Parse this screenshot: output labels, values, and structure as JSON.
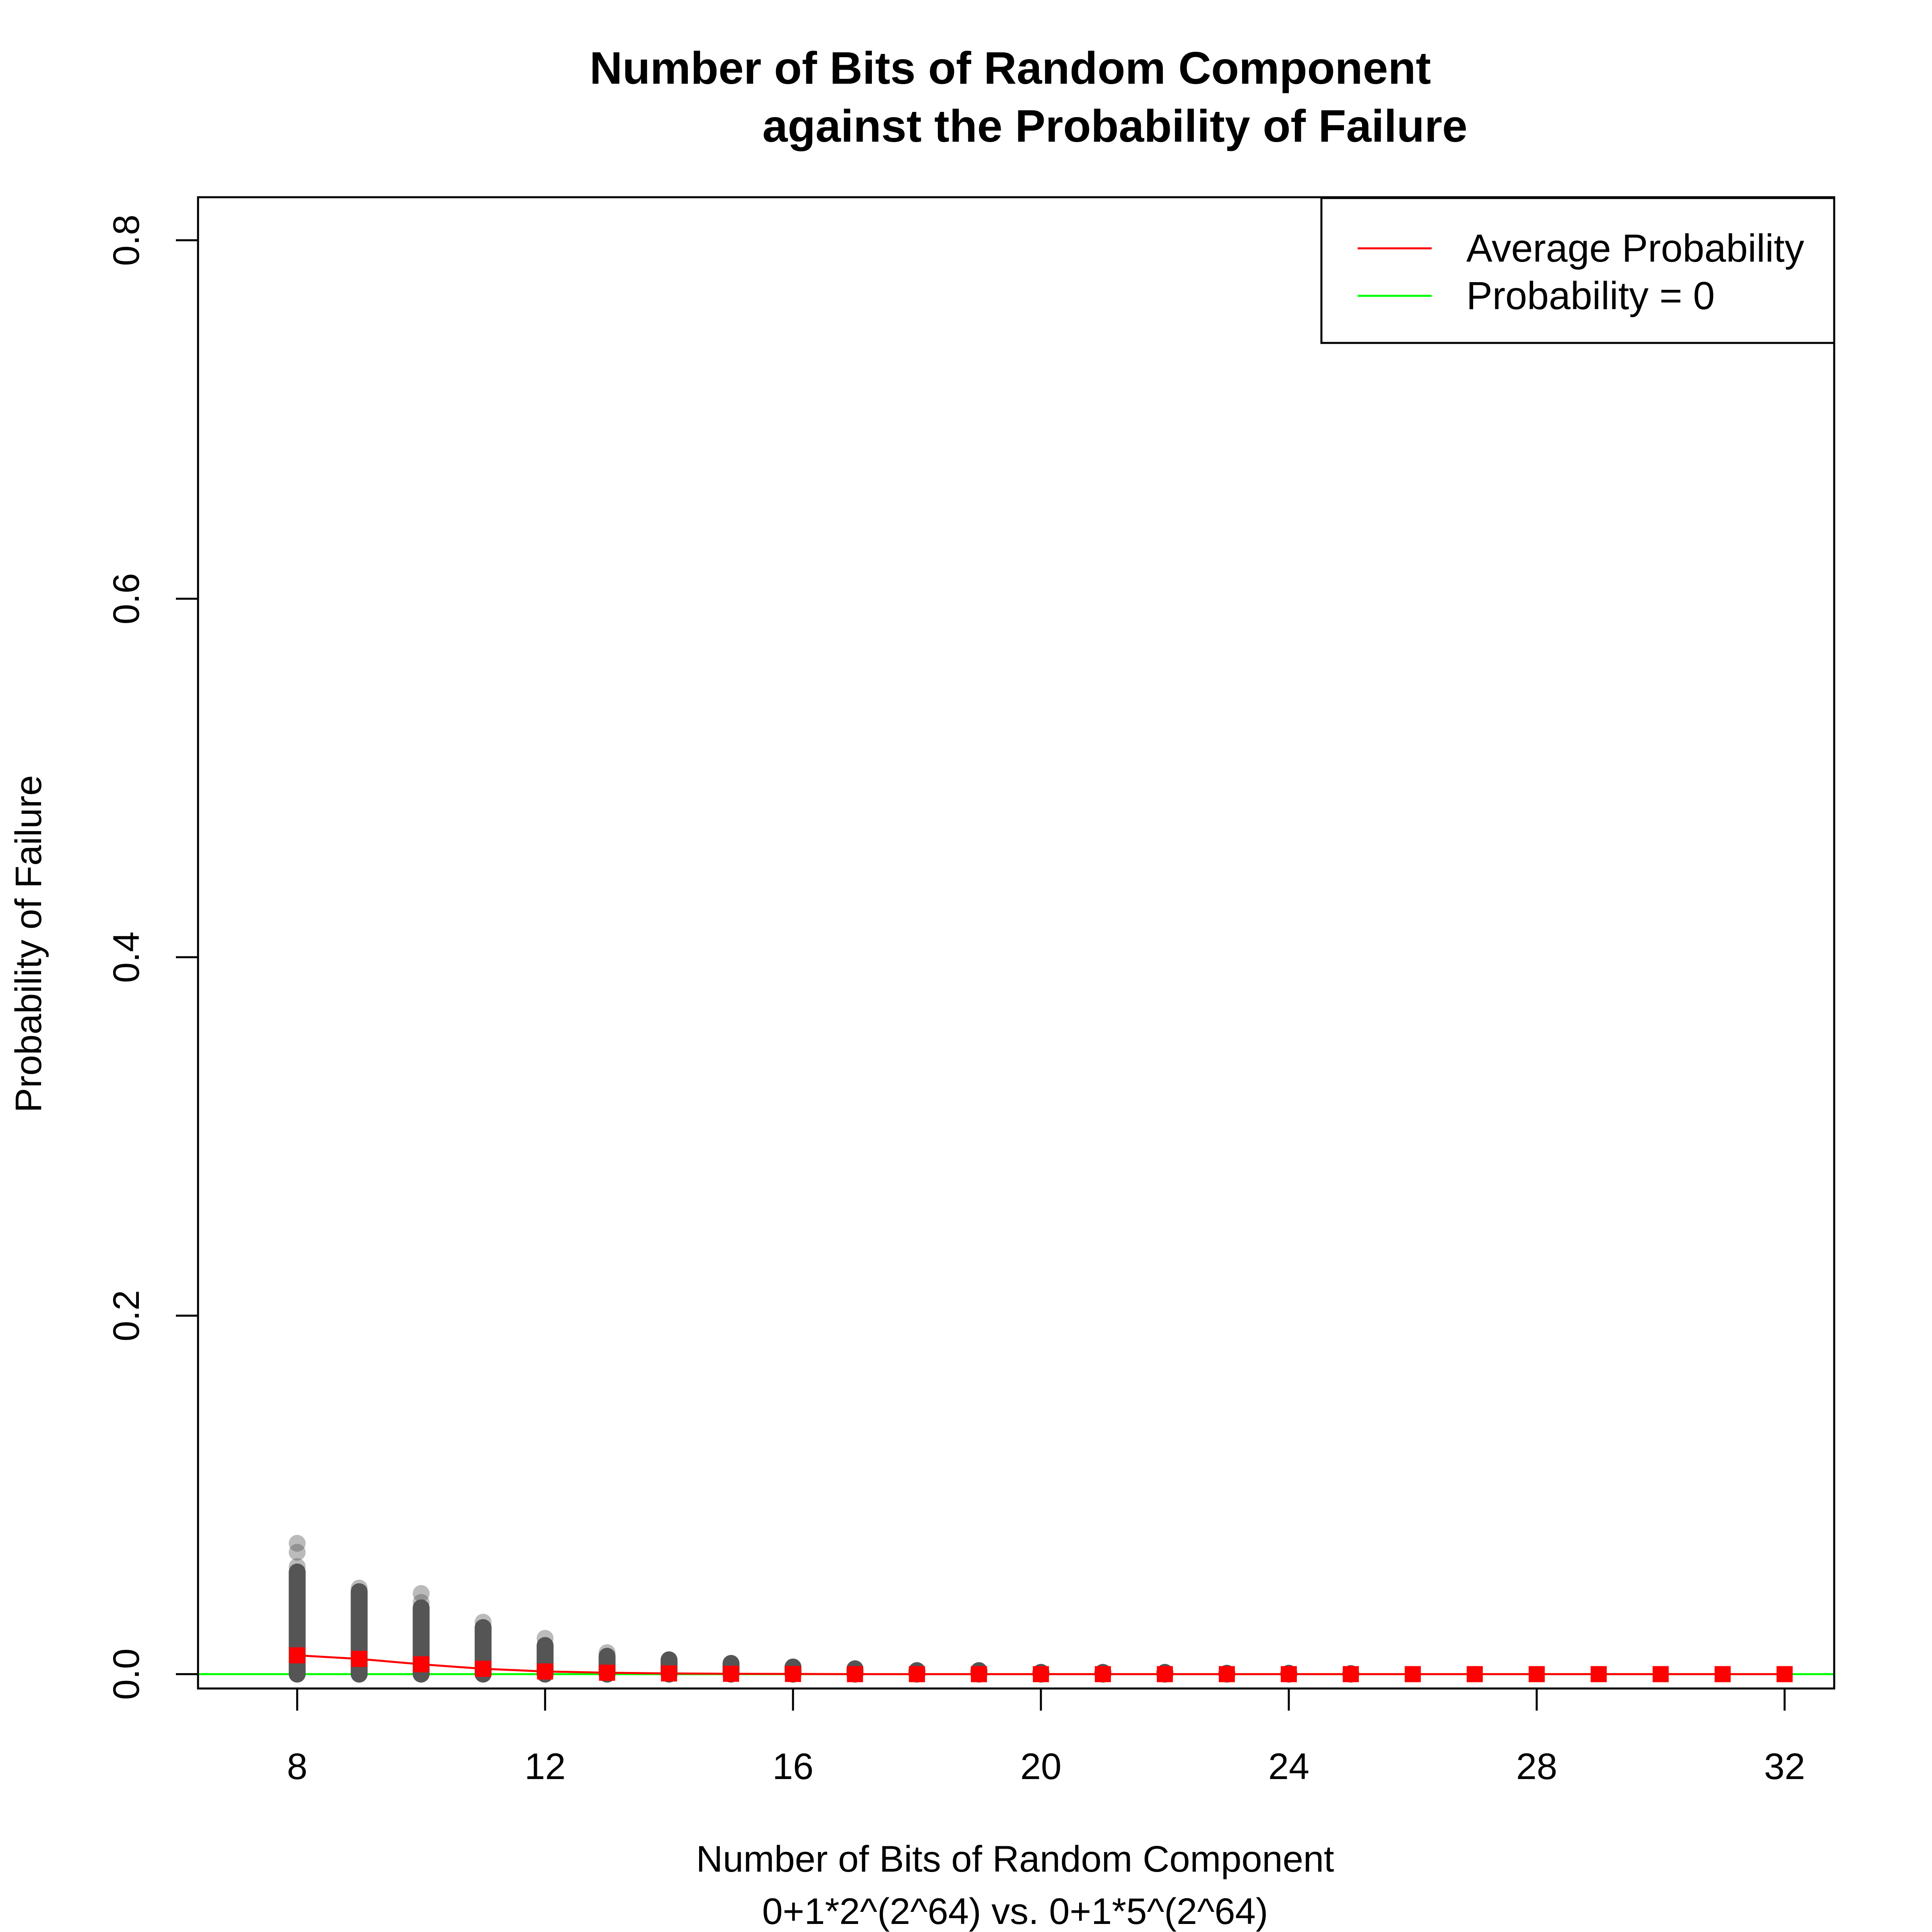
{
  "chart_data": {
    "type": "scatter",
    "title_line1": "Number of Bits of Random Component",
    "title_line2": "against the Probability of Failure",
    "xlabel_line1": "Number of Bits of Random Component",
    "xlabel_line2": "0+1*2^(2^64) vs. 0+1*5^(2^64)",
    "ylabel": "Probability of Failure",
    "xlim": [
      6.4,
      32.8
    ],
    "ylim": [
      -0.008,
      0.824
    ],
    "x_ticks": [
      8,
      12,
      16,
      20,
      24,
      28,
      32
    ],
    "x_tick_labels": [
      "8",
      "12",
      "16",
      "20",
      "24",
      "28",
      "32"
    ],
    "y_ticks": [
      0.0,
      0.2,
      0.4,
      0.6,
      0.8
    ],
    "y_tick_labels": [
      "0.0",
      "0.2",
      "0.4",
      "0.6",
      "0.8"
    ],
    "grid": false,
    "legend_position": "top-right",
    "legend": [
      {
        "label": "Average Probability",
        "color": "#ff0000"
      },
      {
        "label": "Probability = 0",
        "color": "#00ff00"
      }
    ],
    "reference_line": {
      "y": 0,
      "color": "#00ff00"
    },
    "point_color": "#555555",
    "average_color": "#ff0000",
    "bits": [
      8,
      9,
      10,
      11,
      12,
      13,
      14,
      15,
      16,
      17,
      18,
      19,
      20,
      21,
      22,
      23,
      24,
      25,
      26,
      27,
      28,
      29,
      30,
      31,
      32
    ],
    "sample_range": [
      [
        0.0,
        0.057
      ],
      [
        0.0,
        0.046
      ],
      [
        0.0,
        0.037
      ],
      [
        0.0,
        0.026
      ],
      [
        0.0,
        0.016
      ],
      [
        0.0,
        0.01
      ],
      [
        0.0,
        0.008
      ],
      [
        0.0,
        0.006
      ],
      [
        0.0,
        0.004
      ],
      [
        0.0,
        0.003
      ],
      [
        0.0,
        0.002
      ],
      [
        0.0,
        0.002
      ],
      [
        0.0,
        0.001
      ],
      [
        0.0,
        0.001
      ],
      [
        0.0,
        0.001
      ],
      [
        0.0,
        0.0005
      ],
      [
        0.0,
        0.0005
      ],
      [
        0.0,
        0.0003
      ],
      [
        0.0,
        0.0002
      ],
      [
        0.0,
        0.0002
      ],
      [
        0.0,
        0.0001
      ],
      [
        0.0,
        0.0001
      ],
      [
        0.0,
        0.0001
      ],
      [
        0.0,
        0.0
      ],
      [
        0.0,
        0.0
      ]
    ],
    "outliers": [
      {
        "x": 8,
        "y": 0.073
      },
      {
        "x": 8,
        "y": 0.068
      },
      {
        "x": 8,
        "y": 0.06
      },
      {
        "x": 9,
        "y": 0.048
      },
      {
        "x": 10,
        "y": 0.045
      },
      {
        "x": 10,
        "y": 0.04
      },
      {
        "x": 11,
        "y": 0.029
      },
      {
        "x": 12,
        "y": 0.02
      },
      {
        "x": 13,
        "y": 0.012
      }
    ],
    "average": [
      0.0105,
      0.0085,
      0.0055,
      0.003,
      0.0015,
      0.0008,
      0.0004,
      0.0002,
      0.0001,
      0.0,
      0.0,
      0.0,
      0.0,
      0.0,
      0.0,
      0.0,
      0.0,
      0.0,
      0.0,
      0.0,
      0.0,
      0.0,
      0.0,
      0.0,
      0.0
    ]
  }
}
